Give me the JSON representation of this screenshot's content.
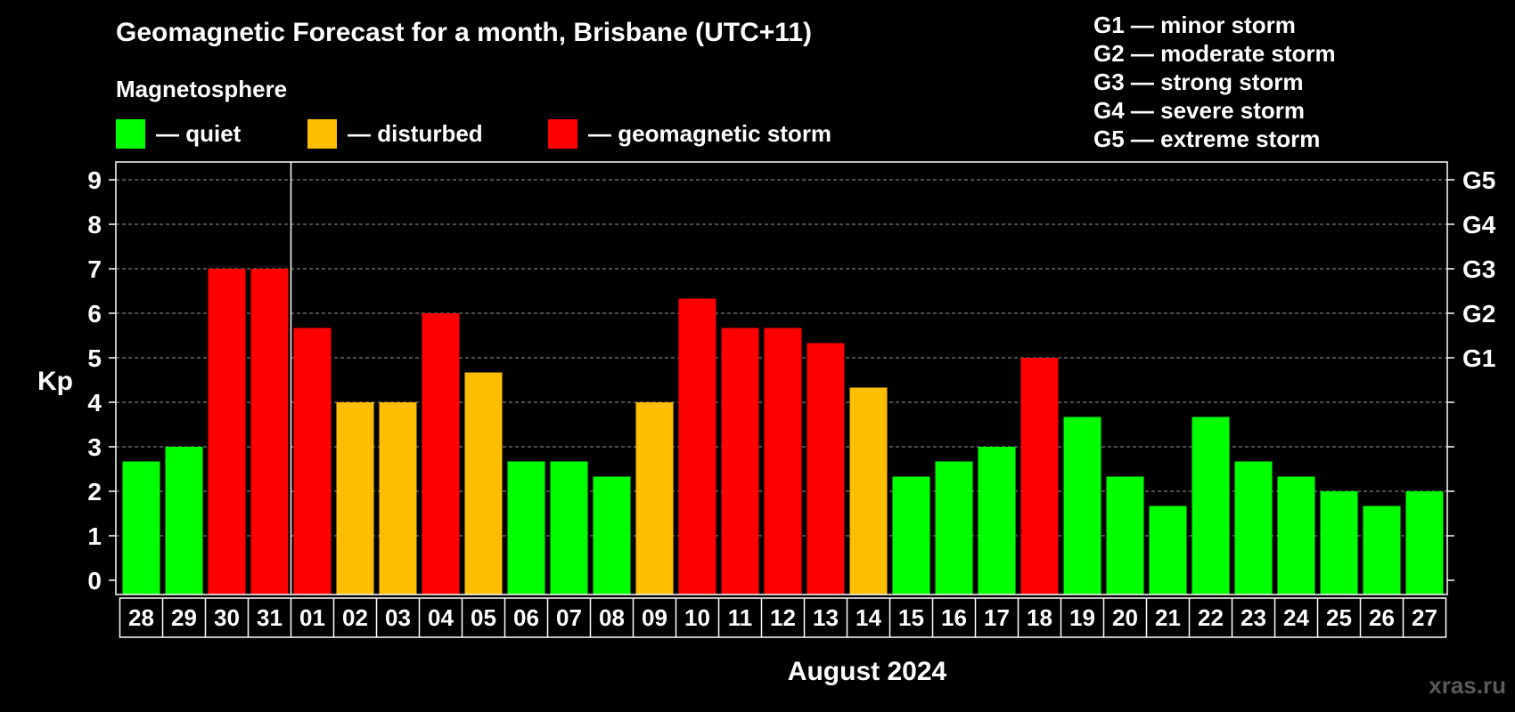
{
  "title": "Geomagnetic Forecast for a month, Brisbane (UTC+11)",
  "subtitle": "Magnetosphere",
  "legend": [
    {
      "label": "— quiet",
      "color": "#00ff00"
    },
    {
      "label": "— disturbed",
      "color": "#ffbf00"
    },
    {
      "label": "— geomagnetic storm",
      "color": "#ff0000"
    }
  ],
  "storm_scale": [
    "G1 — minor storm",
    "G2 — moderate storm",
    "G3 — strong storm",
    "G4 — severe storm",
    "G5 — extreme storm"
  ],
  "watermark": "xras.ru",
  "chart_data": {
    "type": "bar",
    "title": "Geomagnetic Forecast for a month, Brisbane (UTC+11)",
    "ylabel": "Kp",
    "xlabel": "August 2024",
    "ylim": [
      0,
      9
    ],
    "yticks": [
      "0",
      "1",
      "2",
      "3",
      "4",
      "5",
      "6",
      "7",
      "8",
      "9"
    ],
    "right_ticks": [
      {
        "value": 5,
        "label": "G1"
      },
      {
        "value": 6,
        "label": "G2"
      },
      {
        "value": 7,
        "label": "G3"
      },
      {
        "value": 8,
        "label": "G4"
      },
      {
        "value": 9,
        "label": "G5"
      }
    ],
    "grid": true,
    "categories": [
      "28",
      "29",
      "30",
      "31",
      "01",
      "02",
      "03",
      "04",
      "05",
      "06",
      "07",
      "08",
      "09",
      "10",
      "11",
      "12",
      "13",
      "14",
      "15",
      "16",
      "17",
      "18",
      "19",
      "20",
      "21",
      "22",
      "23",
      "24",
      "25",
      "26",
      "27"
    ],
    "values": [
      2.67,
      3,
      7,
      7,
      5.67,
      4,
      4,
      6,
      4.67,
      2.67,
      2.67,
      2.33,
      4,
      6.33,
      5.67,
      5.67,
      5.33,
      4.33,
      2.33,
      2.67,
      3,
      5,
      3.67,
      2.33,
      1.67,
      3.67,
      2.67,
      2.33,
      2,
      1.67,
      2
    ],
    "colors": {
      "quiet": "#00ff00",
      "disturbed": "#ffbf00",
      "storm": "#ff0000"
    }
  }
}
